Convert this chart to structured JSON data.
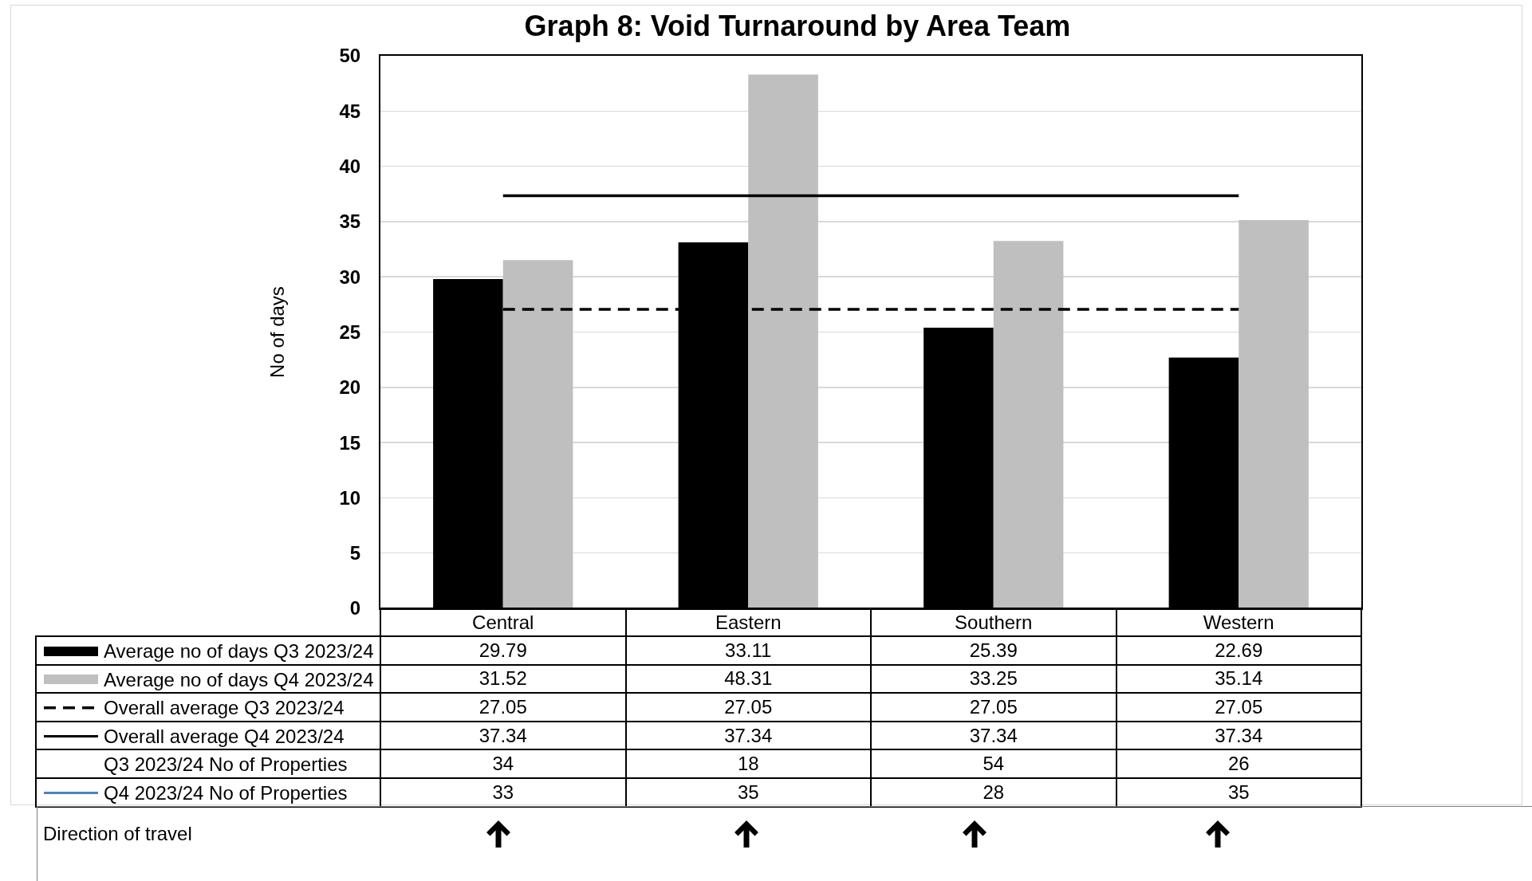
{
  "chart_data": [
    {
      "type": "bar",
      "title": "Graph 8: Void Turnaround by Area Team",
      "ylabel": "No of days",
      "categories": [
        "Central",
        "Eastern",
        "Southern",
        "Western"
      ],
      "series": [
        {
          "name": "Average no of days Q3 2023/24",
          "color": "#000000",
          "values": [
            29.79,
            33.11,
            25.39,
            22.69
          ]
        },
        {
          "name": "Average no of days Q4 2023/24",
          "color": "#bfbfbf",
          "values": [
            31.52,
            48.31,
            33.25,
            35.14
          ]
        },
        {
          "name": "Overall average Q3 2023/24",
          "type": "line",
          "line_style": "dashed",
          "color": "#000000",
          "values": [
            27.05,
            27.05,
            27.05,
            27.05
          ]
        },
        {
          "name": "Overall average Q4 2023/24",
          "type": "line",
          "line_style": "solid",
          "color": "#000000",
          "values": [
            37.34,
            37.34,
            37.34,
            37.34
          ]
        }
      ],
      "ylim": [
        0,
        50
      ],
      "yticks": [
        0,
        5,
        10,
        15,
        20,
        25,
        30,
        35,
        40,
        45,
        50
      ],
      "grid": "y",
      "legend": "bottom left",
      "data_labels": true
    },
    {
      "type": "heatmap",
      "categories": [
        null,
        null,
        null,
        null
      ],
      "y_categories": [
        "Q3 2023/24 No of Properties",
        "Q4 2023/24 No of Properties"
      ],
      "cells": [
        [
          34,
          18,
          54,
          26
        ],
        [
          33,
          35,
          28,
          35
        ]
      ],
      "data_labels": true,
      "annotations": [
        "Direction of travel"
      ]
    }
  ]
}
